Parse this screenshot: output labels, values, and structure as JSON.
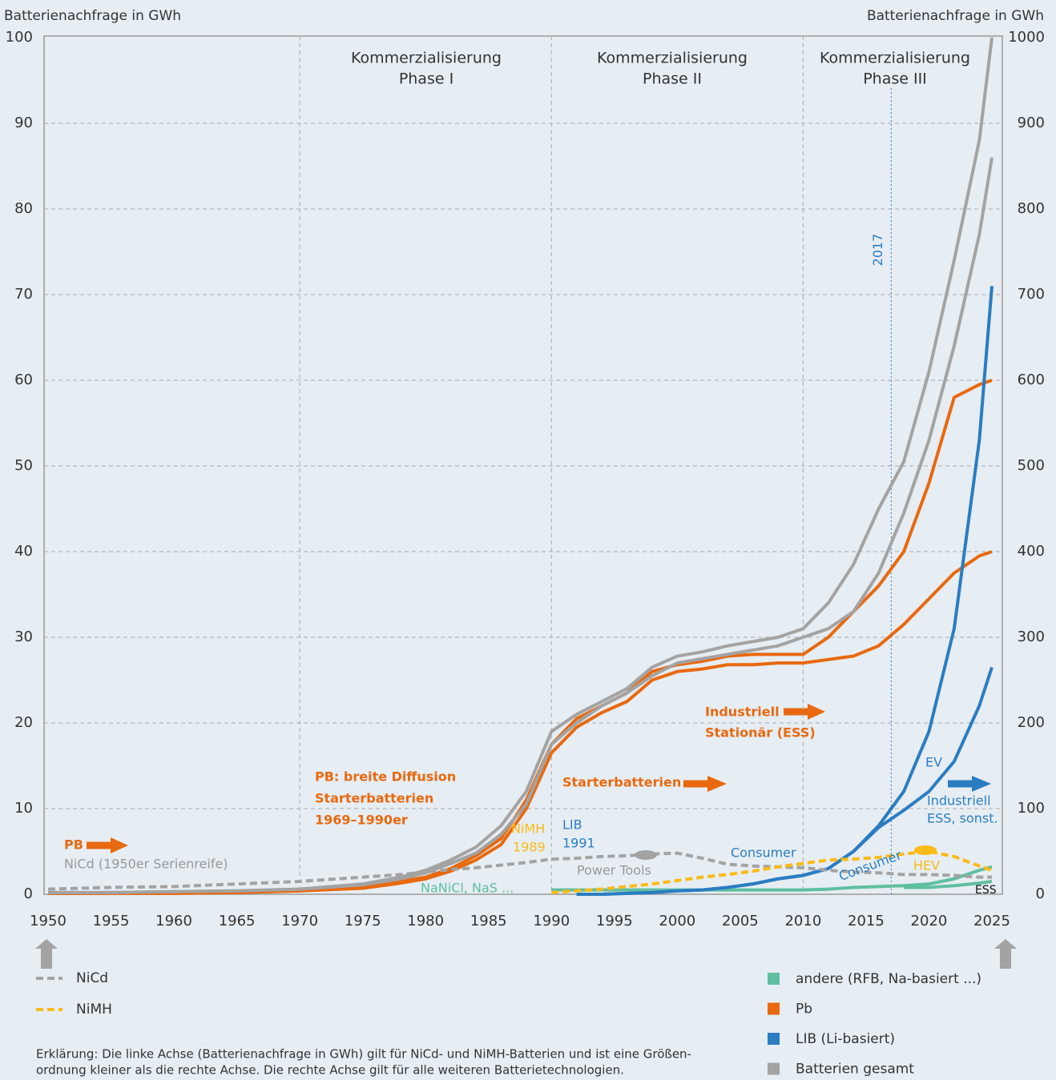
{
  "chart_data": {
    "type": "line",
    "y_label": "Batterienachfrage in GWh",
    "y2_label": "Batterienachfrage in GWh",
    "x": [
      1950,
      1955,
      1960,
      1965,
      1970,
      1975,
      1978,
      1980,
      1982,
      1984,
      1986,
      1988,
      1990,
      1992,
      1994,
      1996,
      1998,
      2000,
      2002,
      2004,
      2006,
      2008,
      2010,
      2012,
      2014,
      2016,
      2018,
      2020,
      2022,
      2024,
      2025
    ],
    "xlim": [
      1950,
      2025
    ],
    "xticks": [
      1950,
      1955,
      1960,
      1965,
      1970,
      1975,
      1980,
      1985,
      1990,
      1995,
      2000,
      2005,
      2010,
      2015,
      2020,
      2025
    ],
    "ylim": [
      0,
      100
    ],
    "yticks": [
      0,
      10,
      20,
      30,
      40,
      50,
      60,
      70,
      80,
      90,
      100
    ],
    "y2lim": [
      0,
      1000
    ],
    "y2ticks": [
      0,
      100,
      200,
      300,
      400,
      500,
      600,
      700,
      800,
      900,
      1000
    ],
    "grid": true,
    "phase_lines": [
      1970,
      1990,
      2010
    ],
    "phases": [
      [
        "Kommerzialisierung",
        "Phase I"
      ],
      [
        "Kommerzialisierung",
        "Phase II"
      ],
      [
        "Kommerzialisierung",
        "Phase III"
      ]
    ],
    "marker_year": {
      "value": 2017,
      "label": "2017"
    },
    "series": [
      {
        "name": "NiCd",
        "color": "#a3a3a3",
        "dashed": true,
        "axis": "y",
        "values": [
          0.6,
          0.8,
          0.9,
          1.2,
          1.5,
          2,
          2.3,
          2.6,
          2.9,
          3.1,
          3.4,
          3.7,
          4.1,
          4.2,
          4.4,
          4.5,
          4.7,
          4.8,
          4.2,
          3.5,
          3.3,
          3.2,
          3.1,
          2.8,
          2.6,
          2.5,
          2.3,
          2.3,
          2.2,
          2.0,
          2.0
        ]
      },
      {
        "name": "NiMH",
        "color": "#fbbb16",
        "dashed": true,
        "axis": "y",
        "values": [
          null,
          null,
          null,
          null,
          null,
          null,
          null,
          null,
          null,
          null,
          null,
          null,
          0.2,
          0.4,
          0.6,
          0.9,
          1.2,
          1.6,
          2.0,
          2.3,
          2.7,
          3.2,
          3.6,
          4.0,
          4.1,
          4.3,
          4.7,
          5.0,
          4.4,
          3.3,
          2.8
        ]
      },
      {
        "name": "andere (RFB, Na-basiert ...)",
        "color": "#5fbfa0",
        "dashed": false,
        "axis": "y2",
        "values": [
          null,
          null,
          null,
          null,
          null,
          null,
          null,
          null,
          null,
          null,
          null,
          null,
          5,
          5,
          5,
          5,
          5,
          5,
          5,
          5,
          5,
          5,
          5,
          6,
          8,
          9,
          10,
          12,
          18,
          28,
          32
        ],
        "values_2": [
          null,
          null,
          null,
          null,
          null,
          null,
          null,
          null,
          null,
          null,
          null,
          null,
          null,
          null,
          null,
          null,
          null,
          null,
          null,
          null,
          null,
          null,
          null,
          null,
          null,
          null,
          8,
          8,
          10,
          13,
          15
        ]
      },
      {
        "name": "Pb",
        "color": "#e8690f",
        "dashed": false,
        "axis": "y2",
        "values": [
          1,
          1,
          1,
          2,
          4,
          8,
          15,
          20,
          30,
          45,
          65,
          110,
          175,
          205,
          220,
          235,
          260,
          268,
          272,
          278,
          280,
          280,
          280,
          300,
          330,
          360,
          400,
          480,
          580,
          595,
          600
        ],
        "values_2": [
          1,
          1,
          1,
          2,
          4,
          7,
          13,
          18,
          27,
          40,
          58,
          100,
          165,
          195,
          212,
          225,
          250,
          260,
          263,
          268,
          268,
          270,
          270,
          274,
          278,
          290,
          315,
          345,
          375,
          395,
          400
        ]
      },
      {
        "name": "LIB (Li-basiert)",
        "color": "#2b7dc1",
        "dashed": false,
        "axis": "y2",
        "values": [
          null,
          null,
          null,
          null,
          null,
          null,
          null,
          null,
          null,
          null,
          null,
          null,
          null,
          0,
          0,
          1,
          2,
          4,
          5,
          8,
          12,
          18,
          22,
          30,
          50,
          80,
          120,
          190,
          310,
          530,
          710
        ],
        "values_2": [
          null,
          null,
          null,
          null,
          null,
          null,
          null,
          null,
          null,
          null,
          null,
          null,
          null,
          0,
          0,
          1,
          2,
          4,
          5,
          8,
          12,
          18,
          22,
          30,
          50,
          78,
          98,
          120,
          155,
          220,
          265
        ]
      },
      {
        "name": "Batterien gesamt",
        "color": "#a3a3a3",
        "dashed": false,
        "axis": "y2",
        "values": [
          2,
          2,
          3,
          4,
          6,
          12,
          20,
          28,
          40,
          55,
          80,
          120,
          190,
          210,
          225,
          240,
          265,
          278,
          283,
          290,
          295,
          300,
          310,
          340,
          385,
          450,
          505,
          610,
          740,
          880,
          1000
        ],
        "values_2": [
          2,
          2,
          3,
          4,
          6,
          11,
          18,
          25,
          36,
          48,
          70,
          105,
          175,
          200,
          220,
          235,
          255,
          270,
          275,
          280,
          285,
          290,
          300,
          310,
          330,
          375,
          445,
          530,
          640,
          770,
          860
        ]
      }
    ],
    "annotations": [
      "PB",
      "NiCd (1950er Serienreife)",
      "PB: breite Diffusion",
      "Starterbatterien",
      "1969–1990er",
      "NiMH",
      "1989",
      "LIB",
      "1991",
      "NaNiCl, NaS ...",
      "Power Tools",
      "Starterbatterien",
      "Industriell",
      "Stationär (ESS)",
      "Consumer",
      "Consumer",
      "HEV",
      "EV",
      "Industriell",
      "ESS, sonst.",
      "ESS"
    ],
    "note": [
      "Erklärung: Die linke Achse (Batterienachfrage in GWh) gilt für NiCd- und NiMH-Batterien und ist eine Größen-",
      "ordnung kleiner als die rechte Achse. Die rechte Achse gilt für alle weiteren Batterietechnologien."
    ]
  }
}
